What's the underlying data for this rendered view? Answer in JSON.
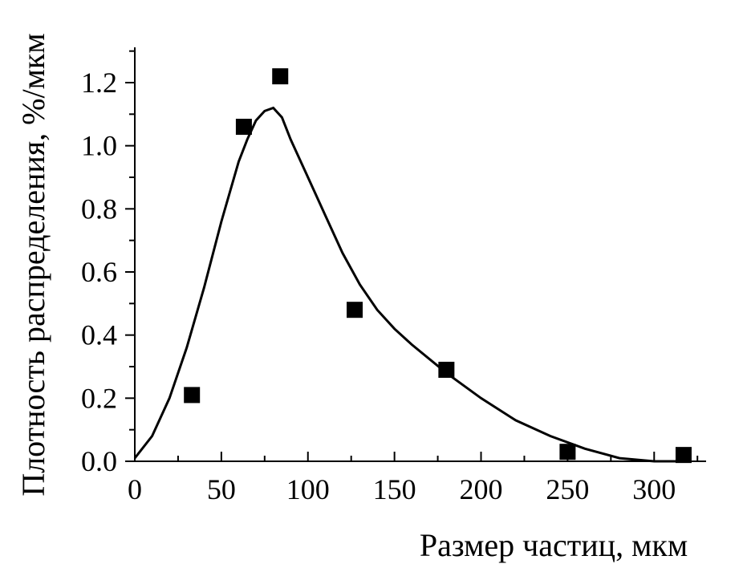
{
  "chart_data": {
    "type": "scatter",
    "xlabel": "Размер частиц, мкм",
    "ylabel": "Плотность распределения, %/мкм",
    "xlim": [
      0,
      330
    ],
    "ylim": [
      0,
      1.3
    ],
    "x_ticks": [
      0,
      50,
      100,
      150,
      200,
      250,
      300
    ],
    "x_tick_labels": [
      "0",
      "50",
      "100",
      "150",
      "200",
      "250",
      "300"
    ],
    "y_ticks": [
      0,
      0.2,
      0.4,
      0.6,
      0.8,
      1.0,
      1.2
    ],
    "y_tick_labels": [
      "0.0",
      "0.2",
      "0.4",
      "0.6",
      "0.8",
      "1.0",
      "1.2"
    ],
    "grid": false,
    "series": [
      {
        "type": "scatter",
        "marker": "square",
        "x": [
          33,
          63,
          84,
          127,
          180,
          250,
          317
        ],
        "y": [
          0.21,
          1.06,
          1.22,
          0.48,
          0.29,
          0.03,
          0.02
        ]
      },
      {
        "type": "line",
        "x": [
          0,
          10,
          20,
          30,
          40,
          50,
          60,
          65,
          70,
          75,
          80,
          85,
          90,
          100,
          110,
          120,
          130,
          140,
          150,
          160,
          180,
          200,
          220,
          240,
          260,
          280,
          300,
          310,
          320
        ],
        "y": [
          0.01,
          0.08,
          0.2,
          0.36,
          0.55,
          0.76,
          0.95,
          1.02,
          1.08,
          1.11,
          1.12,
          1.09,
          1.02,
          0.9,
          0.78,
          0.66,
          0.56,
          0.48,
          0.42,
          0.37,
          0.28,
          0.2,
          0.13,
          0.08,
          0.04,
          0.01,
          0.0,
          0.0,
          0.0
        ]
      }
    ],
    "colors": {
      "marker": "#000000",
      "line": "#000000"
    }
  }
}
